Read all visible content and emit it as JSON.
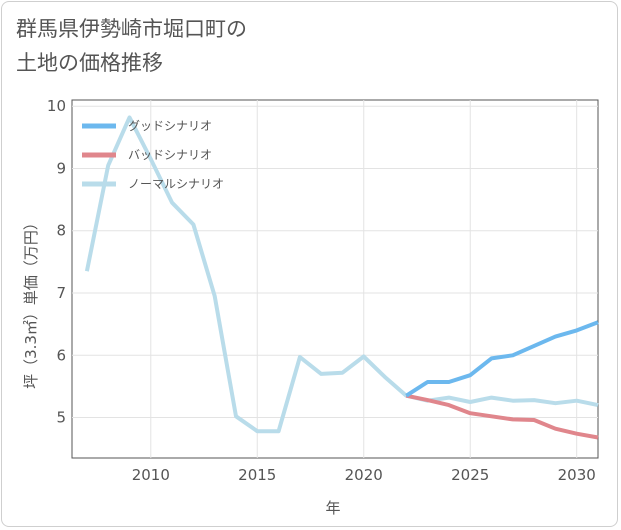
{
  "title_line1": "群馬県伊勢崎市堀口町の",
  "title_line2": "土地の価格推移",
  "chart_data": {
    "type": "line",
    "xlabel": "年",
    "ylabel": "坪（3.3㎡）単価（万円）",
    "xlim": [
      2006.3,
      2031
    ],
    "ylim": [
      4.35,
      10.1
    ],
    "xticks": [
      2010,
      2015,
      2020,
      2025,
      2030
    ],
    "yticks": [
      5,
      6,
      7,
      8,
      9,
      10
    ],
    "grid": true,
    "legend_position": "top-left",
    "series": [
      {
        "name": "グッドシナリオ",
        "color": "#6cb8ee",
        "x": [
          2022,
          2023,
          2024,
          2025,
          2026,
          2027,
          2028,
          2029,
          2030,
          2031
        ],
        "values": [
          5.35,
          5.57,
          5.57,
          5.68,
          5.95,
          6.0,
          6.15,
          6.3,
          6.4,
          6.53
        ]
      },
      {
        "name": "バッドシナリオ",
        "color": "#e0868c",
        "x": [
          2022,
          2023,
          2024,
          2025,
          2026,
          2027,
          2028,
          2029,
          2030,
          2031
        ],
        "values": [
          5.35,
          5.28,
          5.2,
          5.07,
          5.02,
          4.97,
          4.96,
          4.82,
          4.74,
          4.68
        ]
      },
      {
        "name": "ノーマルシナリオ",
        "color": "#b9dcea",
        "x": [
          2007,
          2008,
          2009,
          2010,
          2011,
          2012,
          2013,
          2014,
          2015,
          2016,
          2017,
          2018,
          2019,
          2020,
          2021,
          2022,
          2023,
          2024,
          2025,
          2026,
          2027,
          2028,
          2029,
          2030,
          2031
        ],
        "values": [
          7.35,
          9.05,
          9.82,
          9.15,
          8.45,
          8.1,
          6.95,
          5.02,
          4.78,
          4.78,
          5.97,
          5.7,
          5.72,
          5.98,
          5.65,
          5.35,
          5.27,
          5.32,
          5.25,
          5.32,
          5.27,
          5.28,
          5.23,
          5.27,
          5.2
        ]
      }
    ]
  }
}
